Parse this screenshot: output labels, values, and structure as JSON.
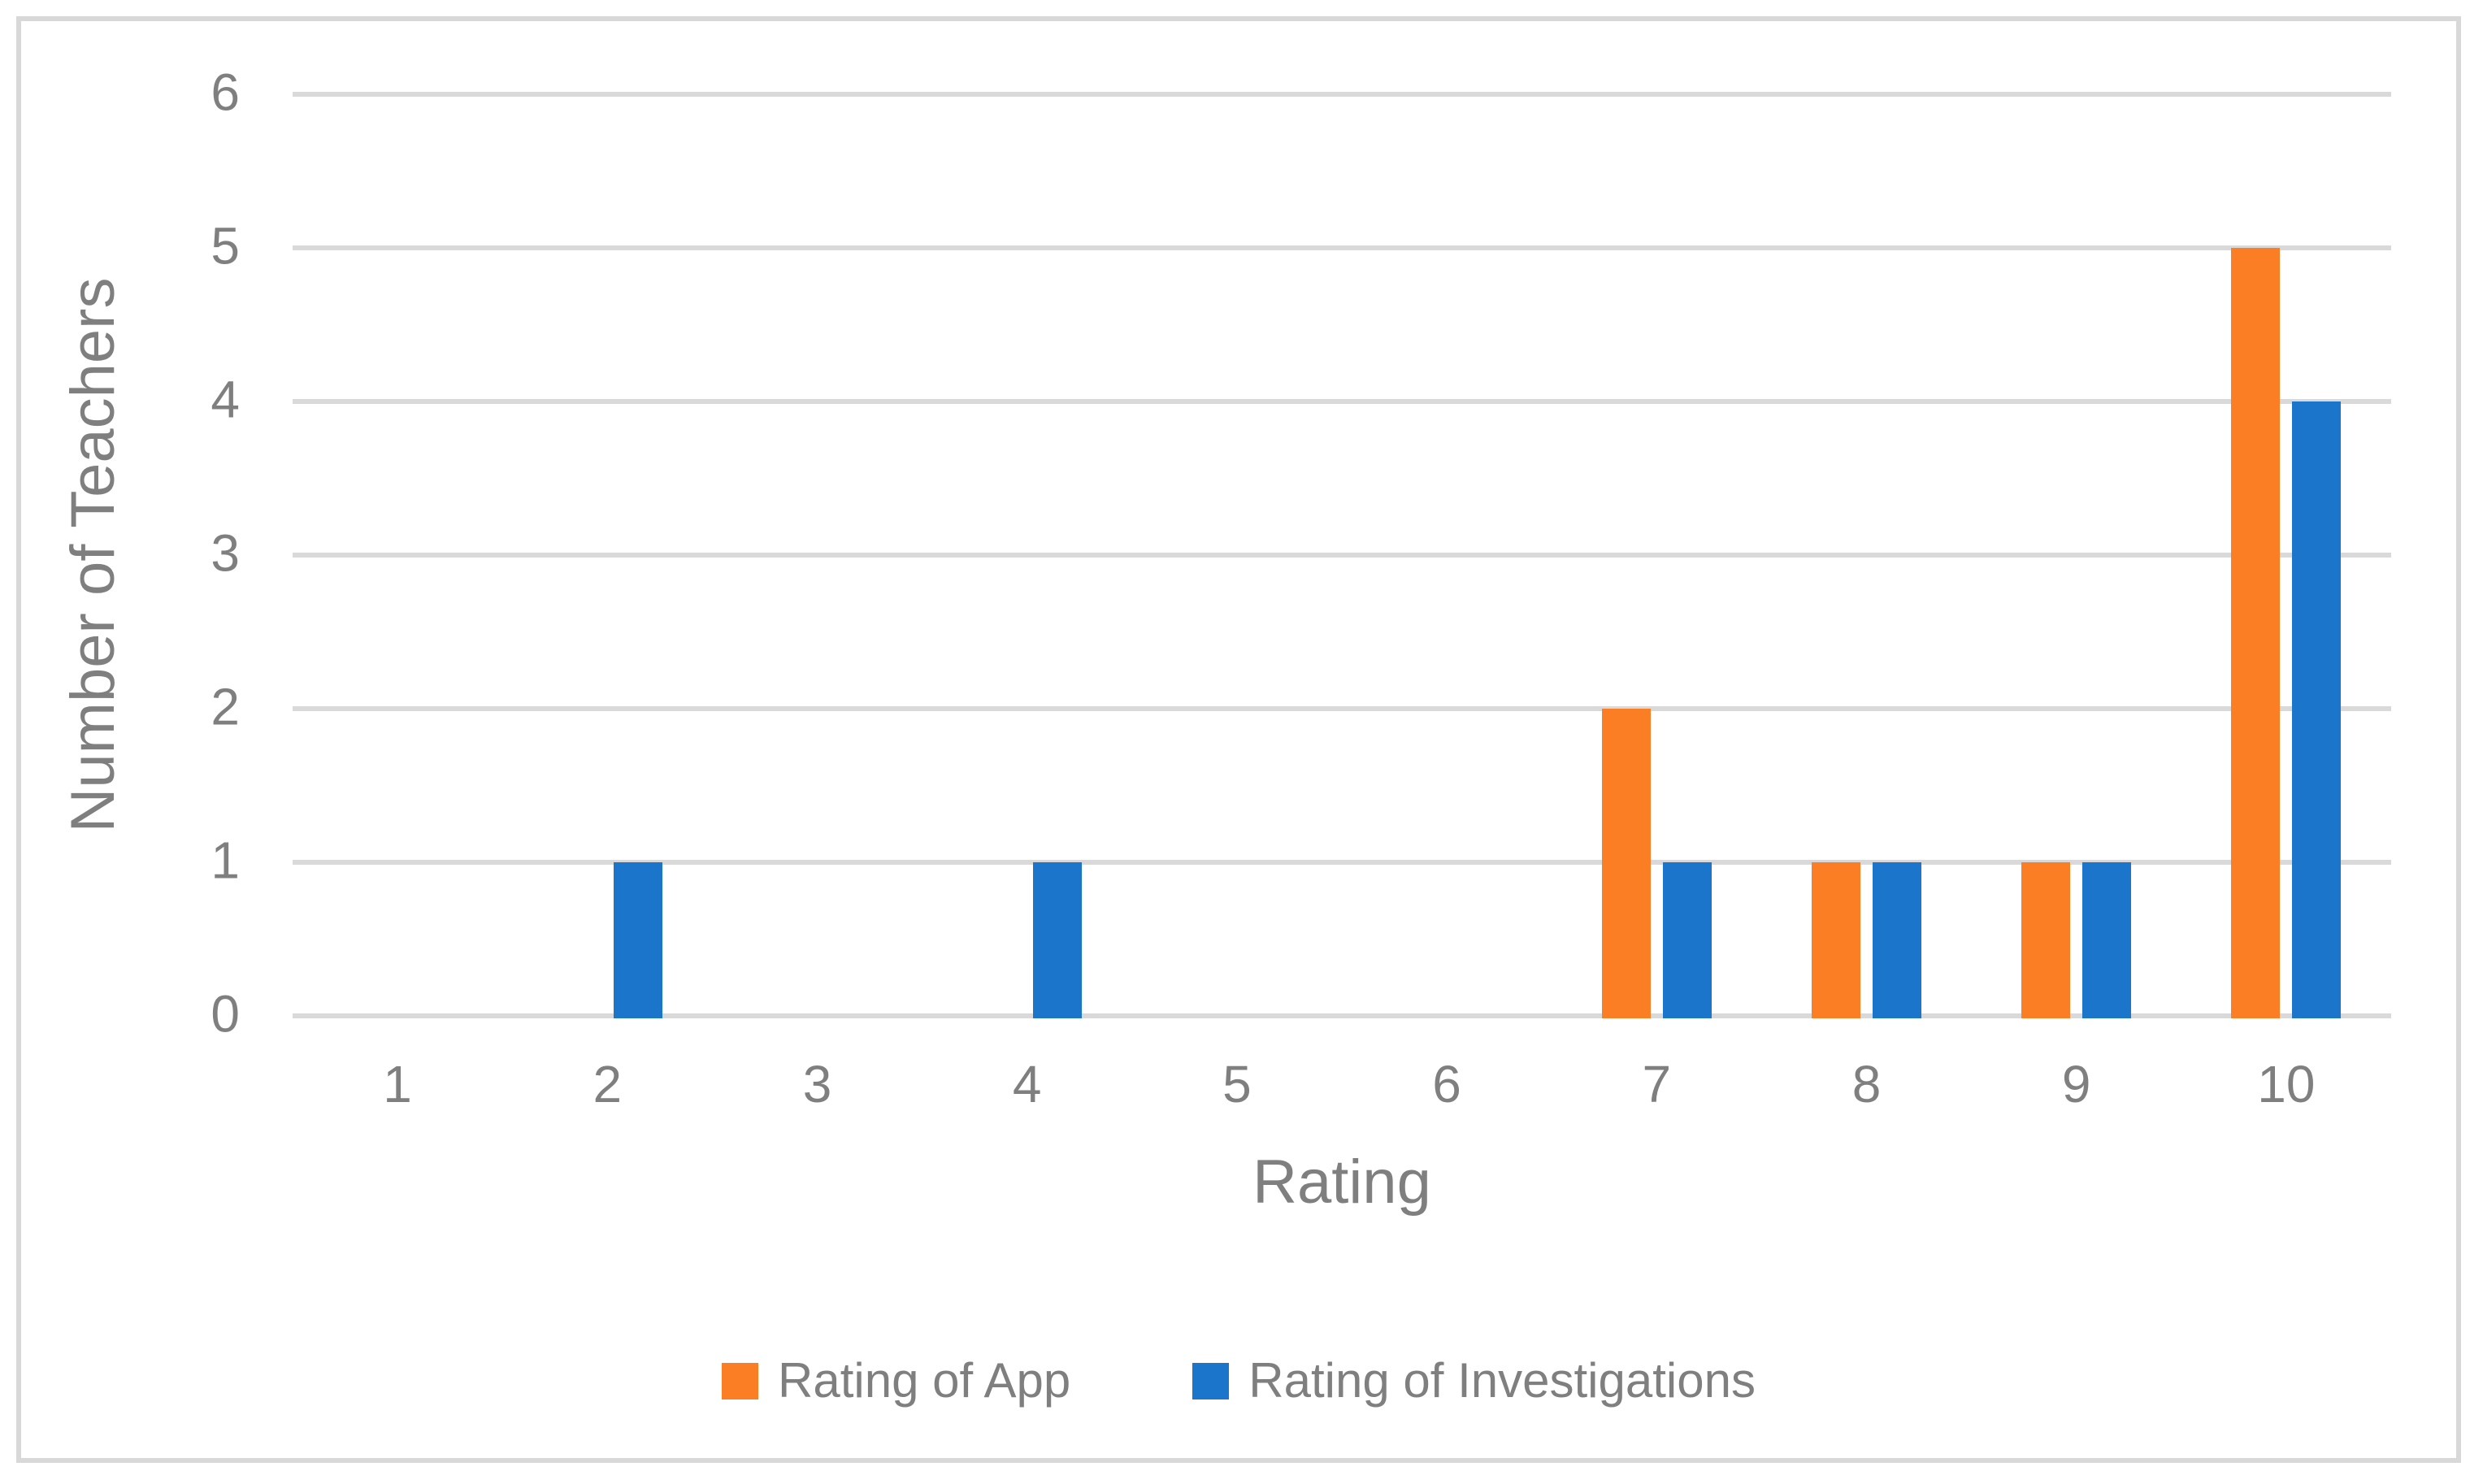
{
  "figure": {
    "background_color": "#ffffff",
    "border_color": "#d8d8d8",
    "text_color": "#7f7f7f",
    "gridline_color": "#d9d9d9"
  },
  "chart_data": {
    "type": "bar",
    "title": "",
    "xlabel": "Rating",
    "ylabel": "Number of Teachers",
    "categories": [
      "1",
      "2",
      "3",
      "4",
      "5",
      "6",
      "7",
      "8",
      "9",
      "10"
    ],
    "series": [
      {
        "name": "Rating of App",
        "color": "#fb7e25",
        "values": [
          0,
          0,
          0,
          0,
          0,
          0,
          2,
          1,
          1,
          5
        ]
      },
      {
        "name": "Rating of Investigations",
        "color": "#1b75ca",
        "values": [
          0,
          1,
          0,
          1,
          0,
          0,
          1,
          1,
          1,
          4
        ]
      }
    ],
    "ylim": [
      0,
      6
    ],
    "yticks": [
      "0",
      "1",
      "2",
      "3",
      "4",
      "5",
      "6"
    ],
    "grid": "horizontal-only",
    "legend_position": "bottom-center",
    "bar_cluster": "two-series-side-by-side"
  }
}
